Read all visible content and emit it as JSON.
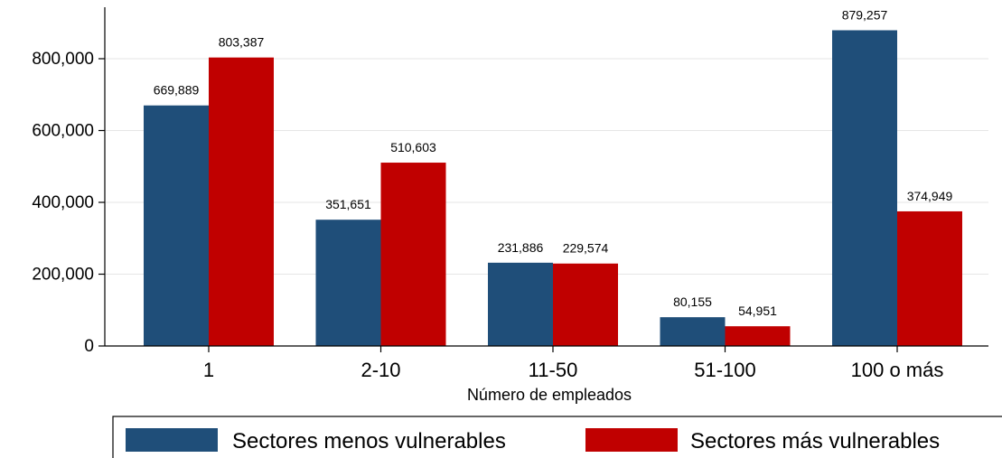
{
  "chart_data": {
    "type": "bar",
    "xlabel": "Número de empleados",
    "ylabel": "",
    "ylim": [
      0,
      900000
    ],
    "yticks": [
      0,
      200000,
      400000,
      600000,
      800000
    ],
    "ytick_labels": [
      "0",
      "200,000",
      "400,000",
      "600,000",
      "800,000"
    ],
    "grid": true,
    "legend_position": "bottom",
    "categories": [
      "1",
      "2-10",
      "11-50",
      "51-100",
      "100 o más"
    ],
    "series": [
      {
        "name": "Sectores menos vulnerables",
        "color": "#1f4e79",
        "values": [
          669889,
          351651,
          231886,
          80155,
          879257
        ],
        "labels": [
          "669,889",
          "351,651",
          "231,886",
          "80,155",
          "879,257"
        ]
      },
      {
        "name": "Sectores más vulnerables",
        "color": "#c00000",
        "values": [
          803387,
          510603,
          229574,
          54951,
          374949
        ],
        "labels": [
          "803,387",
          "510,603",
          "229,574",
          "54,951",
          "374,949"
        ]
      }
    ]
  }
}
